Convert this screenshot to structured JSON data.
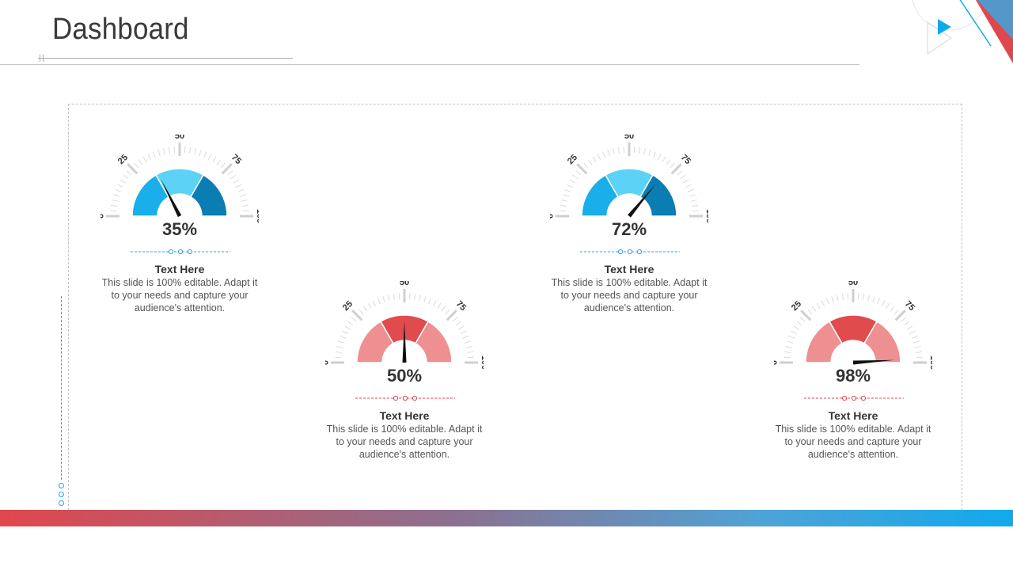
{
  "header": {
    "title": "Dashboard"
  },
  "gauges": [
    {
      "value": 35,
      "label": "35%",
      "title": "Text Here",
      "description": "This slide is 100% editable. Adapt it to your needs and capture your audience's attention.",
      "theme": "blue"
    },
    {
      "value": 50,
      "label": "50%",
      "title": "Text Here",
      "description": "This slide is 100% editable. Adapt it to your needs and capture your audience's attention.",
      "theme": "red"
    },
    {
      "value": 72,
      "label": "72%",
      "title": "Text Here",
      "description": "This slide is 100% editable. Adapt it to your needs and capture your audience's attention.",
      "theme": "blue"
    },
    {
      "value": 98,
      "label": "98%",
      "title": "Text Here",
      "description": "This slide is 100% editable. Adapt it to your needs and capture your audience's attention.",
      "theme": "red"
    }
  ],
  "scale_labels": [
    "0",
    "25",
    "50",
    "75",
    "100"
  ],
  "themes": {
    "blue": {
      "left": "#1aaeea",
      "middle": "#5cd2f7",
      "right": "#0a7db2",
      "divider": "#2aa6e6"
    },
    "red": {
      "left": "#ee8f92",
      "middle": "#e04b4e",
      "right": "#ee8f92",
      "divider": "#e0474c"
    }
  },
  "colors": {
    "band_start": "#e0474c",
    "band_end": "#11a9ec",
    "needle": "#111111"
  },
  "icons": {
    "corner": "play-triangle-icon"
  }
}
